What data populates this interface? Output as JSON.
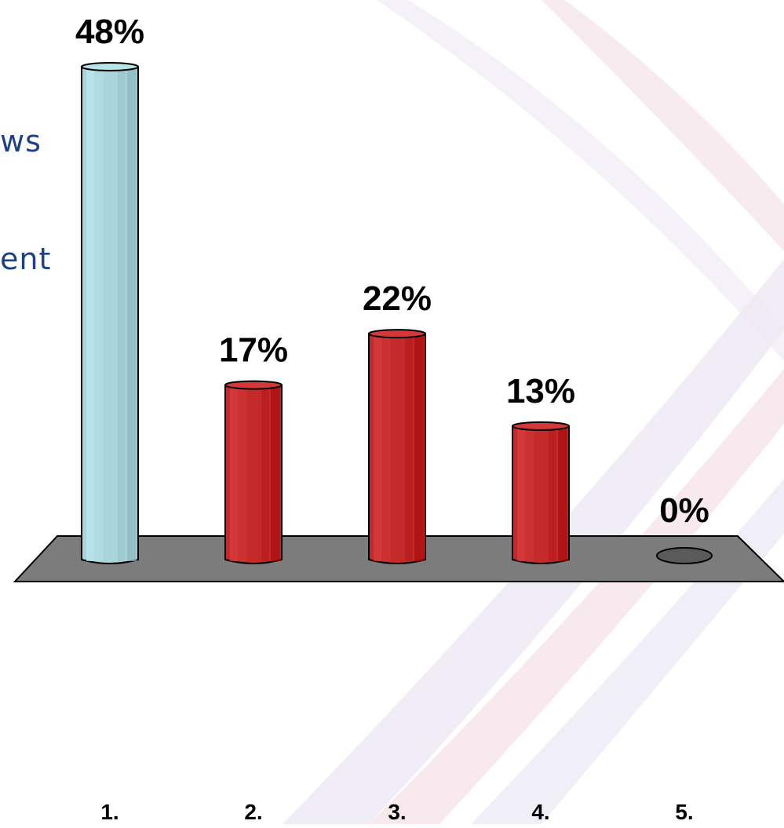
{
  "side_text": [
    "ws",
    "ent"
  ],
  "colors": {
    "highlight_bar": "#a9d4d9",
    "bar": "#c52a2a",
    "floor": "#7c7c7c",
    "side_text": "#1f3f86"
  },
  "chart_data": {
    "type": "bar",
    "title": "",
    "xlabel": "",
    "ylabel": "",
    "categories": [
      "1.",
      "2.",
      "3.",
      "4.",
      "5."
    ],
    "values": [
      48,
      17,
      22,
      13,
      0
    ],
    "value_labels": [
      "48%",
      "17%",
      "22%",
      "13%",
      "0%"
    ],
    "highlight_index": 0,
    "ylim": [
      0,
      48
    ],
    "grid": false,
    "legend": "none"
  }
}
